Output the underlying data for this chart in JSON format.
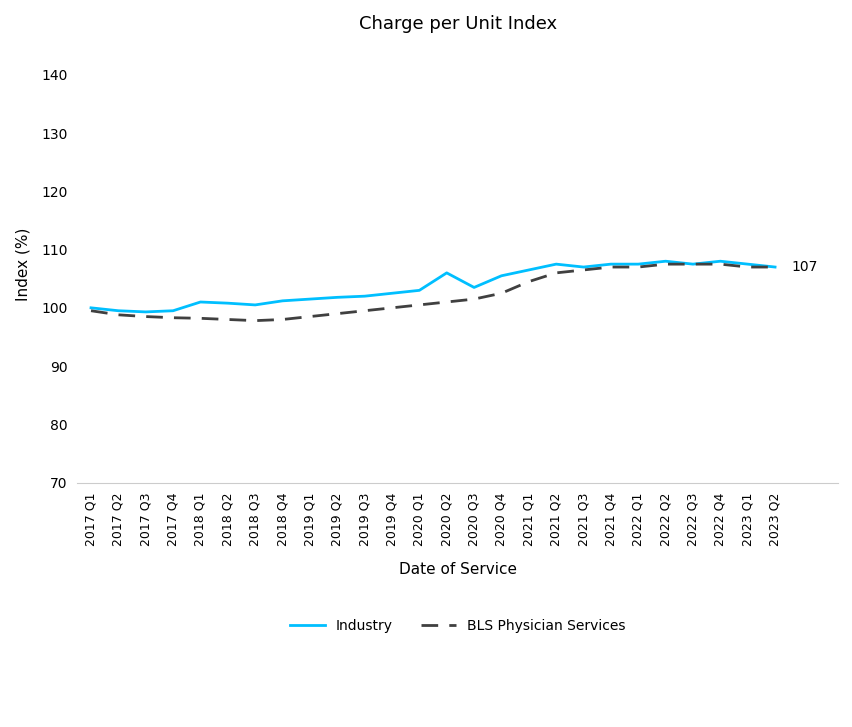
{
  "title": "Charge per Unit Index",
  "xlabel": "Date of Service",
  "ylabel": "Index (%)",
  "ylim": [
    70,
    145
  ],
  "yticks": [
    70,
    80,
    90,
    100,
    110,
    120,
    130,
    140
  ],
  "categories": [
    "2017 Q1",
    "2017 Q2",
    "2017 Q3",
    "2017 Q4",
    "2018 Q1",
    "2018 Q2",
    "2018 Q3",
    "2018 Q4",
    "2019 Q1",
    "2019 Q2",
    "2019 Q3",
    "2019 Q4",
    "2020 Q1",
    "2020 Q2",
    "2020 Q3",
    "2020 Q4",
    "2021 Q1",
    "2021 Q2",
    "2021 Q3",
    "2021 Q4",
    "2022 Q1",
    "2022 Q2",
    "2022 Q3",
    "2022 Q4",
    "2023 Q1",
    "2023 Q2"
  ],
  "industry": [
    100.0,
    99.5,
    99.3,
    99.5,
    101.0,
    100.8,
    100.5,
    101.2,
    101.5,
    101.8,
    102.0,
    102.5,
    103.0,
    106.0,
    103.5,
    105.5,
    106.5,
    107.5,
    107.0,
    107.5,
    107.5,
    108.0,
    107.5,
    108.0,
    107.5,
    107.0
  ],
  "bls": [
    99.5,
    98.8,
    98.5,
    98.3,
    98.2,
    98.0,
    97.8,
    98.0,
    98.5,
    99.0,
    99.5,
    100.0,
    100.5,
    101.0,
    101.5,
    102.5,
    104.5,
    106.0,
    106.5,
    107.0,
    107.0,
    107.5,
    107.5,
    107.5,
    107.0,
    107.0
  ],
  "industry_color": "#00BFFF",
  "bls_color": "#404040",
  "annotation_value": "107",
  "background_color": "#ffffff",
  "legend_labels": [
    "Industry",
    "BLS Physician Services"
  ],
  "title_fontsize": 13,
  "axis_label_fontsize": 11,
  "tick_fontsize": 10
}
